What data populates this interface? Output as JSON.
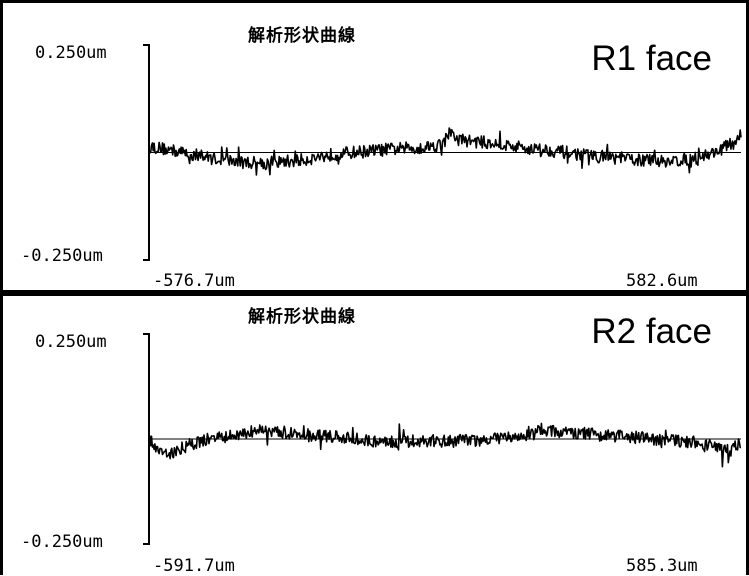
{
  "chart_data": [
    {
      "type": "line",
      "title": "解析形状曲線",
      "annotation": "R1 face",
      "ylim": [
        -0.25,
        0.25
      ],
      "y_top_label": "0.250um",
      "y_bottom_label": "-0.250um",
      "xlim": [
        -576.7,
        582.6
      ],
      "x_left_label": "-576.7um",
      "x_right_label": "582.6um",
      "reference_line": 0,
      "grid": false,
      "series": [
        {
          "x": [
            -576.7,
            -520,
            -460,
            -400,
            -340,
            -280,
            -220,
            -160,
            -100,
            -40,
            0,
            10,
            30,
            90,
            150,
            210,
            270,
            330,
            390,
            440,
            490,
            530,
            560,
            582.6
          ],
          "y": [
            0.015,
            0.002,
            -0.012,
            -0.022,
            -0.024,
            -0.018,
            -0.005,
            0.002,
            0.008,
            0.012,
            0.02,
            0.045,
            0.03,
            0.022,
            0.012,
            0.005,
            -0.005,
            -0.012,
            -0.018,
            -0.02,
            -0.015,
            0.0,
            0.018,
            0.03
          ]
        }
      ]
    },
    {
      "type": "line",
      "title": "解析形状曲線",
      "annotation": "R2 face",
      "ylim": [
        -0.25,
        0.25
      ],
      "y_top_label": "0.250um",
      "y_bottom_label": "-0.250um",
      "xlim": [
        -591.7,
        585.3
      ],
      "x_left_label": "-591.7um",
      "x_right_label": "585.3um",
      "reference_line": 0,
      "grid": false,
      "series": [
        {
          "x": [
            -591.7,
            -570,
            -550,
            -520,
            -480,
            -440,
            -400,
            -370,
            -340,
            -300,
            -250,
            -200,
            -150,
            -100,
            -50,
            0,
            50,
            100,
            150,
            200,
            250,
            300,
            350,
            400,
            450,
            500,
            540,
            565,
            585.3
          ],
          "y": [
            0.0,
            -0.025,
            -0.035,
            -0.018,
            -0.002,
            0.005,
            0.01,
            0.03,
            0.018,
            0.012,
            0.008,
            0.002,
            -0.005,
            -0.006,
            -0.004,
            -0.005,
            -0.004,
            0.0,
            0.008,
            0.022,
            0.015,
            0.01,
            0.006,
            0.002,
            -0.005,
            -0.008,
            -0.02,
            -0.03,
            -0.005
          ]
        }
      ]
    }
  ]
}
